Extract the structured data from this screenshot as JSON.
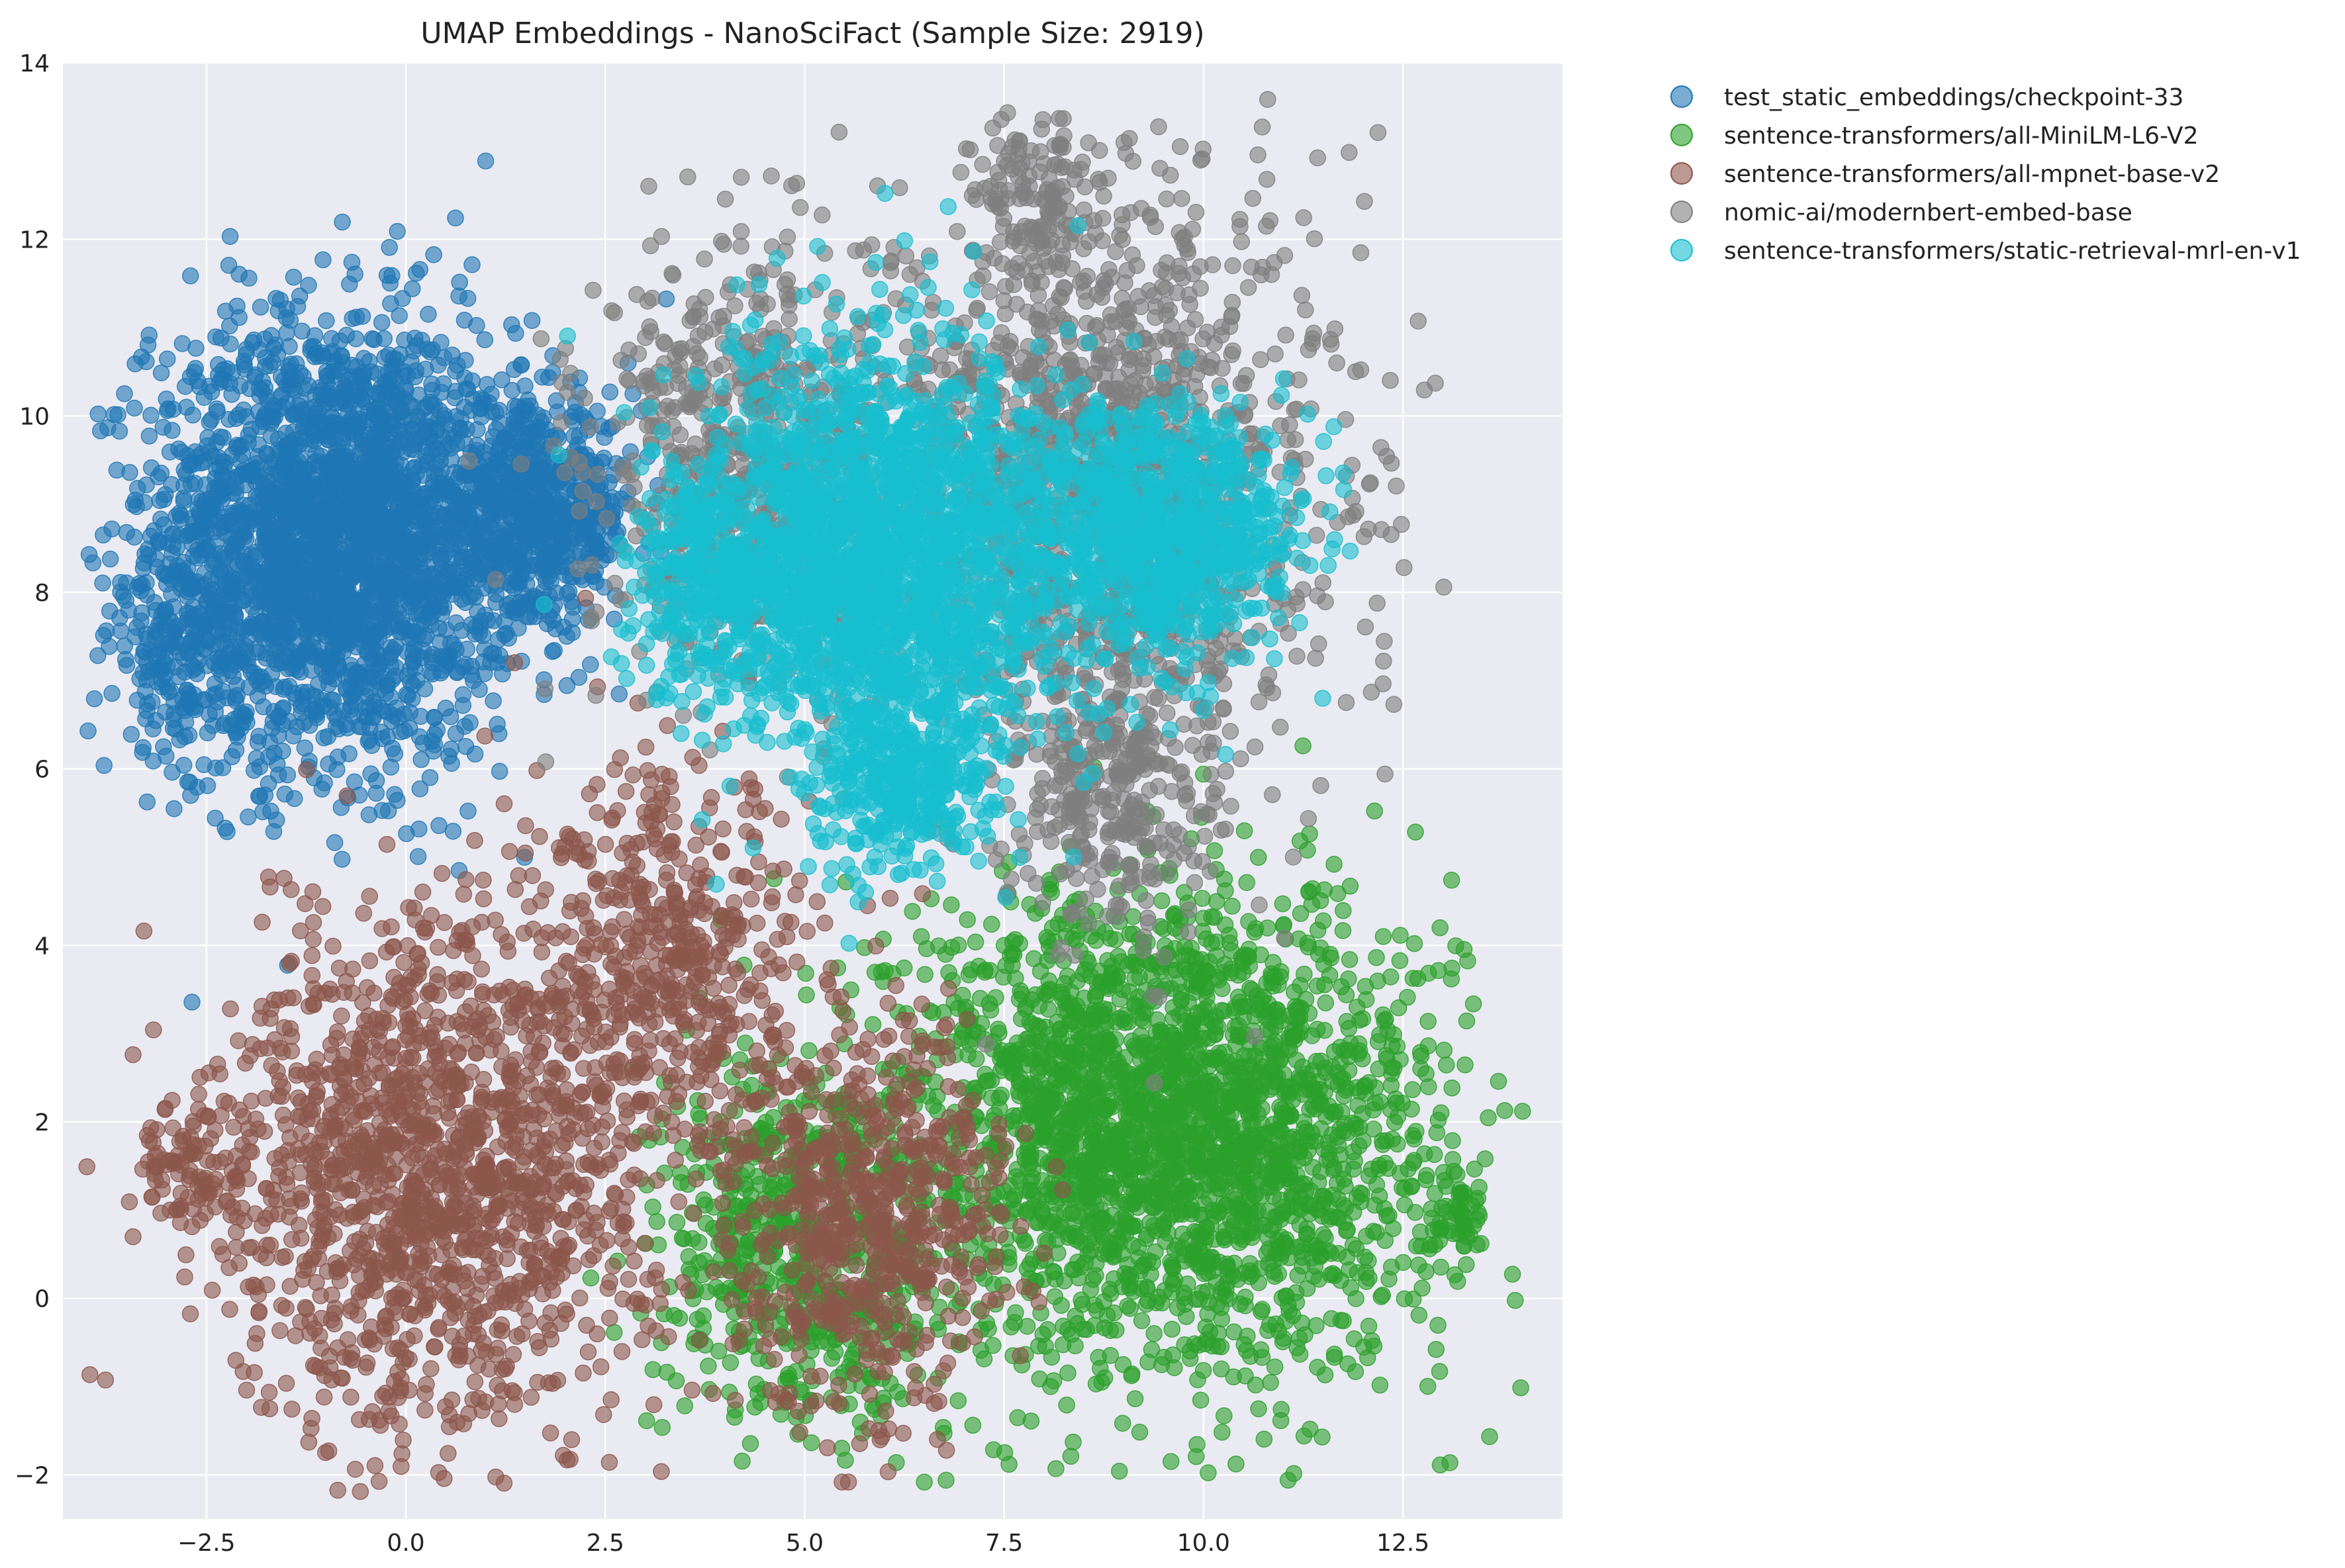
{
  "chart_data": {
    "type": "scatter",
    "title": "UMAP Embeddings - NanoSciFact (Sample Size: 2919)",
    "xlabel": "",
    "ylabel": "",
    "xlim": [
      -4.3,
      14.5
    ],
    "ylim": [
      -2.5,
      14.0
    ],
    "x_ticks": [
      -2.5,
      0.0,
      2.5,
      5.0,
      7.5,
      10.0,
      12.5
    ],
    "x_tick_labels": [
      "−2.5",
      "0.0",
      "2.5",
      "5.0",
      "7.5",
      "10.0",
      "12.5"
    ],
    "y_ticks": [
      -2,
      0,
      2,
      4,
      6,
      8,
      10,
      12,
      14
    ],
    "y_tick_labels": [
      "−2",
      "0",
      "2",
      "4",
      "6",
      "8",
      "10",
      "12",
      "14"
    ],
    "grid": true,
    "legend_position": "outside-top-right",
    "background_color": "#eaeaf2",
    "grid_color": "#ffffff",
    "series": [
      {
        "name": "test_static_embeddings/checkpoint-33",
        "color": "#1f77b4",
        "clusters": [
          {
            "cx": -0.9,
            "cy": 8.6,
            "sx": 1.15,
            "sy": 1.25,
            "n": 2600
          },
          {
            "cx": 1.6,
            "cy": 8.9,
            "sx": 0.65,
            "sy": 0.6,
            "n": 600
          },
          {
            "cx": -2.8,
            "cy": 7.2,
            "sx": 0.4,
            "sy": 0.5,
            "n": 150
          }
        ]
      },
      {
        "name": "sentence-transformers/all-MiniLM-L6-V2",
        "color": "#2ca02c",
        "clusters": [
          {
            "cx": 10.2,
            "cy": 1.8,
            "sx": 1.45,
            "sy": 1.35,
            "n": 1700
          },
          {
            "cx": 8.4,
            "cy": 2.2,
            "sx": 1.2,
            "sy": 1.3,
            "n": 800
          },
          {
            "cx": 5.0,
            "cy": 0.6,
            "sx": 0.9,
            "sy": 1.1,
            "n": 650
          },
          {
            "cx": 13.2,
            "cy": 0.9,
            "sx": 0.2,
            "sy": 0.2,
            "n": 40
          }
        ]
      },
      {
        "name": "sentence-transformers/all-mpnet-base-v2",
        "color": "#8c564b",
        "clusters": [
          {
            "cx": 0.4,
            "cy": 1.4,
            "sx": 1.35,
            "sy": 1.45,
            "n": 1500
          },
          {
            "cx": 3.3,
            "cy": 3.7,
            "sx": 0.9,
            "sy": 1.1,
            "n": 500
          },
          {
            "cx": 5.8,
            "cy": 1.0,
            "sx": 0.85,
            "sy": 1.1,
            "n": 650
          },
          {
            "cx": -2.7,
            "cy": 1.5,
            "sx": 0.35,
            "sy": 0.4,
            "n": 90
          }
        ]
      },
      {
        "name": "nomic-ai/modernbert-embed-base",
        "color": "#7f7f7f",
        "clusters": [
          {
            "cx": 8.8,
            "cy": 9.2,
            "sx": 1.4,
            "sy": 1.7,
            "n": 1500
          },
          {
            "cx": 4.3,
            "cy": 9.4,
            "sx": 1.0,
            "sy": 1.2,
            "n": 700
          },
          {
            "cx": 7.9,
            "cy": 12.5,
            "sx": 0.35,
            "sy": 0.5,
            "n": 120
          },
          {
            "cx": 8.9,
            "cy": 5.6,
            "sx": 0.6,
            "sy": 0.7,
            "n": 250
          }
        ]
      },
      {
        "name": "sentence-transformers/static-retrieval-mrl-en-v1",
        "color": "#17becf",
        "clusters": [
          {
            "cx": 6.0,
            "cy": 8.3,
            "sx": 1.15,
            "sy": 1.25,
            "n": 2000
          },
          {
            "cx": 9.4,
            "cy": 8.7,
            "sx": 0.85,
            "sy": 0.7,
            "n": 900
          },
          {
            "cx": 3.9,
            "cy": 8.2,
            "sx": 0.55,
            "sy": 0.65,
            "n": 350
          },
          {
            "cx": 6.3,
            "cy": 5.9,
            "sx": 0.55,
            "sy": 0.5,
            "n": 300
          }
        ]
      }
    ]
  }
}
